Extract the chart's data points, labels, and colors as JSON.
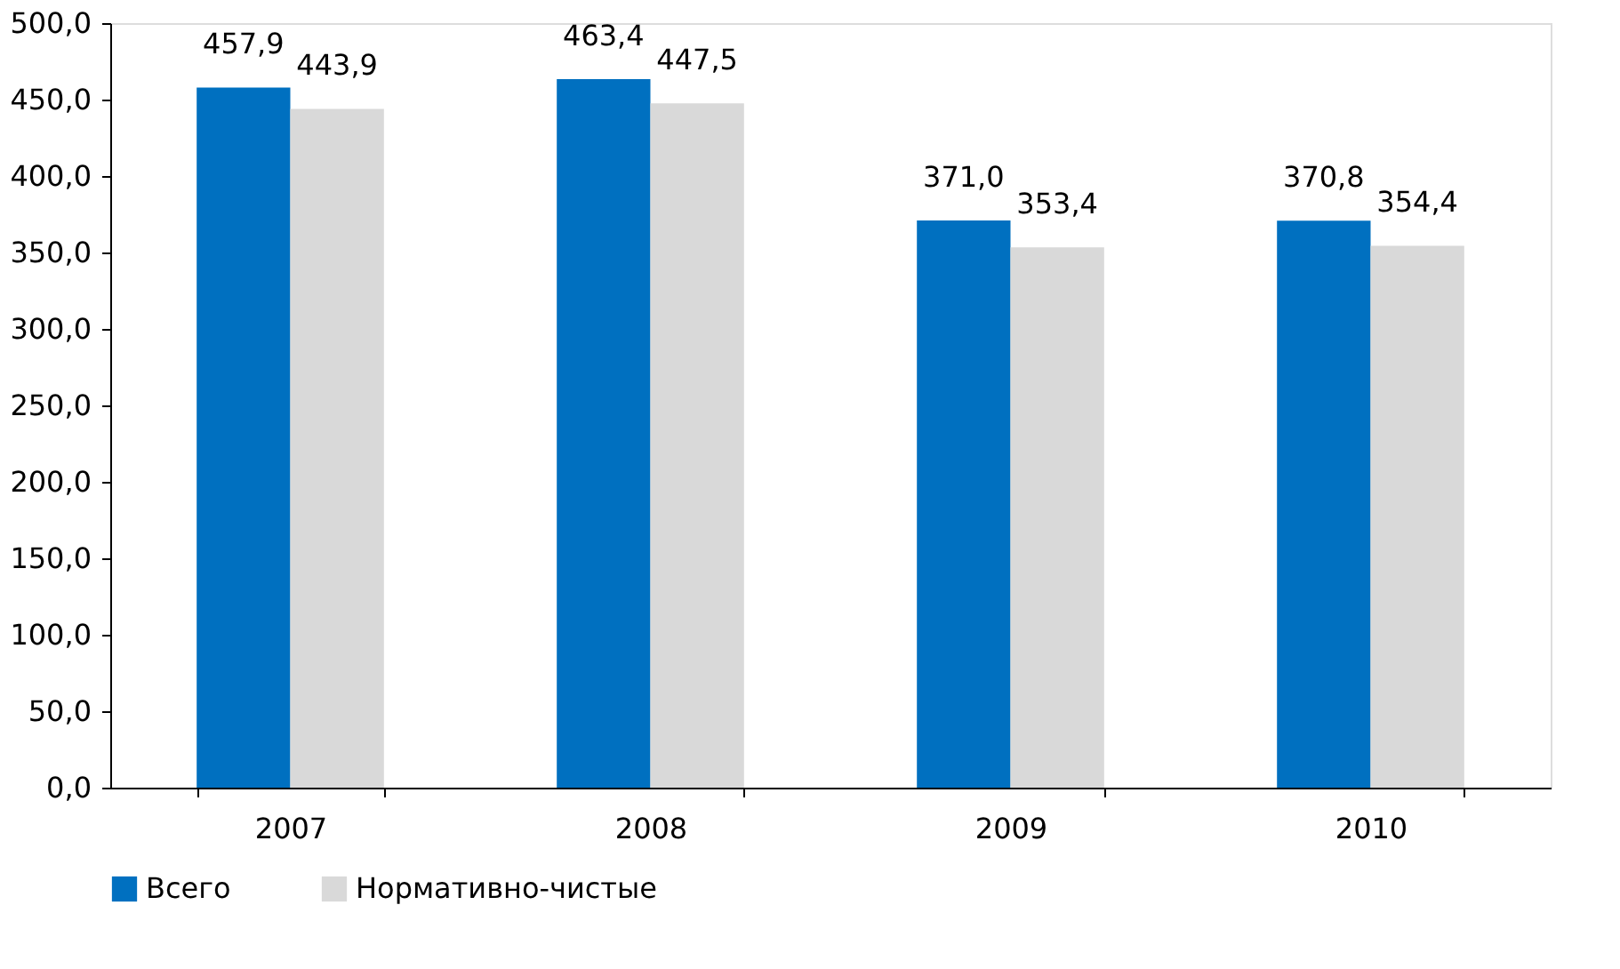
{
  "chart_data": {
    "type": "bar",
    "categories": [
      "2007",
      "2008",
      "2009",
      "2010"
    ],
    "series": [
      {
        "name": "Всего",
        "color": "#0070c0",
        "values": [
          457.9,
          463.4,
          371.0,
          370.8
        ],
        "value_labels": [
          "457,9",
          "463,4",
          "371,0",
          "370,8"
        ]
      },
      {
        "name": "Нормативно-чистые",
        "color": "#d9d9d9",
        "values": [
          443.9,
          447.5,
          353.4,
          354.4
        ],
        "value_labels": [
          "443,9",
          "447,5",
          "353,4",
          "354,4"
        ]
      }
    ],
    "ylim": [
      0,
      500
    ],
    "yticks": [
      {
        "value": 0,
        "label": "0,0"
      },
      {
        "value": 50,
        "label": "50,0"
      },
      {
        "value": 100,
        "label": "100,0"
      },
      {
        "value": 150,
        "label": "150,0"
      },
      {
        "value": 200,
        "label": "200,0"
      },
      {
        "value": 250,
        "label": "250,0"
      },
      {
        "value": 300,
        "label": "300,0"
      },
      {
        "value": 350,
        "label": "350,0"
      },
      {
        "value": 400,
        "label": "400,0"
      },
      {
        "value": 450,
        "label": "450,0"
      },
      {
        "value": 500,
        "label": "500,0"
      }
    ],
    "grid": false,
    "legend": "bottom"
  }
}
